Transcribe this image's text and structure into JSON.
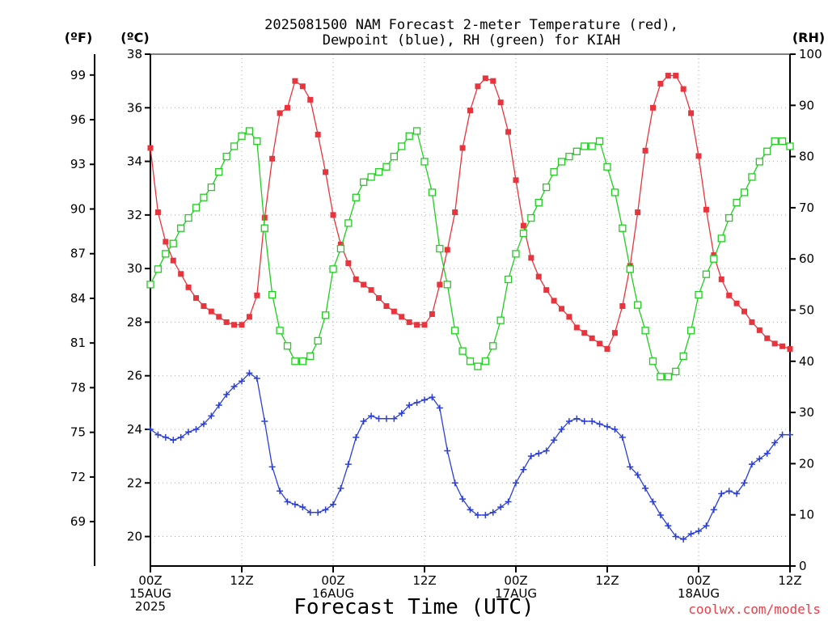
{
  "chart_data": {
    "type": "line",
    "title_lines": [
      "2025081500 NAM Forecast 2-meter Temperature (red),",
      "Dewpoint (blue), RH (green) for KIAH"
    ],
    "xlabel": "Forecast Time (UTC)",
    "credit": "coolwx.com/models",
    "credit_color": "#e8404a",
    "units": {
      "fahrenheit": "(ºF)",
      "celsius": "(ºC)",
      "rh": "(RH)"
    },
    "x_range_hours": [
      0,
      84
    ],
    "x_ticks": [
      {
        "hour": 0,
        "lines": [
          "00Z",
          "15AUG",
          "2025"
        ]
      },
      {
        "hour": 12,
        "lines": [
          "12Z"
        ]
      },
      {
        "hour": 24,
        "lines": [
          "00Z",
          "16AUG"
        ]
      },
      {
        "hour": 36,
        "lines": [
          "12Z"
        ]
      },
      {
        "hour": 48,
        "lines": [
          "00Z",
          "17AUG"
        ]
      },
      {
        "hour": 60,
        "lines": [
          "12Z"
        ]
      },
      {
        "hour": 72,
        "lines": [
          "00Z",
          "18AUG"
        ]
      },
      {
        "hour": 84,
        "lines": [
          "12Z"
        ]
      }
    ],
    "celsius_range": [
      18.9,
      38.0
    ],
    "celsius_ticks": [
      20,
      22,
      24,
      26,
      28,
      30,
      32,
      34,
      36,
      38
    ],
    "fahrenheit_ticks": [
      69,
      72,
      75,
      78,
      81,
      84,
      87,
      90,
      93,
      96,
      99
    ],
    "rh_range": [
      0,
      100
    ],
    "rh_ticks": [
      0,
      10,
      20,
      30,
      40,
      50,
      60,
      70,
      80,
      90,
      100
    ],
    "grid": true,
    "series": [
      {
        "name": "Temperature",
        "axis": "celsius",
        "color": "#e8343c",
        "marker": "filled-square",
        "x": [
          0,
          1,
          2,
          3,
          4,
          5,
          6,
          7,
          8,
          9,
          10,
          11,
          12,
          13,
          14,
          15,
          16,
          17,
          18,
          19,
          20,
          21,
          22,
          23,
          24,
          25,
          26,
          27,
          28,
          29,
          30,
          31,
          32,
          33,
          34,
          35,
          36,
          37,
          38,
          39,
          40,
          41,
          42,
          43,
          44,
          45,
          46,
          47,
          48,
          49,
          50,
          51,
          52,
          53,
          54,
          55,
          56,
          57,
          58,
          59,
          60,
          61,
          62,
          63,
          64,
          65,
          66,
          67,
          68,
          69,
          70,
          71,
          72,
          73,
          74,
          75,
          76,
          77,
          78,
          79,
          80,
          81,
          82,
          83,
          84
        ],
        "values": [
          34.5,
          32.1,
          31.0,
          30.3,
          29.8,
          29.3,
          28.9,
          28.6,
          28.4,
          28.2,
          28.0,
          27.9,
          27.9,
          28.2,
          29.0,
          31.9,
          34.1,
          35.8,
          36.0,
          37.0,
          36.8,
          36.3,
          35.0,
          33.6,
          32.0,
          30.9,
          30.2,
          29.6,
          29.4,
          29.2,
          28.9,
          28.6,
          28.4,
          28.2,
          28.0,
          27.9,
          27.9,
          28.3,
          29.4,
          30.7,
          32.1,
          34.5,
          35.9,
          36.8,
          37.1,
          37.0,
          36.2,
          35.1,
          33.3,
          31.6,
          30.4,
          29.7,
          29.2,
          28.8,
          28.5,
          28.2,
          27.8,
          27.6,
          27.4,
          27.2,
          27.0,
          27.6,
          28.6,
          30.1,
          32.1,
          34.4,
          36.0,
          36.9,
          37.2,
          37.2,
          36.7,
          35.8,
          34.2,
          32.2,
          30.5,
          29.6,
          29.0,
          28.7,
          28.4,
          28.0,
          27.7,
          27.4,
          27.2,
          27.1,
          27.0
        ]
      },
      {
        "name": "Dewpoint",
        "axis": "celsius",
        "color": "#2b3fd6",
        "marker": "plus",
        "x": [
          0,
          1,
          2,
          3,
          4,
          5,
          6,
          7,
          8,
          9,
          10,
          11,
          12,
          13,
          14,
          15,
          16,
          17,
          18,
          19,
          20,
          21,
          22,
          23,
          24,
          25,
          26,
          27,
          28,
          29,
          30,
          31,
          32,
          33,
          34,
          35,
          36,
          37,
          38,
          39,
          40,
          41,
          42,
          43,
          44,
          45,
          46,
          47,
          48,
          49,
          50,
          51,
          52,
          53,
          54,
          55,
          56,
          57,
          58,
          59,
          60,
          61,
          62,
          63,
          64,
          65,
          66,
          67,
          68,
          69,
          70,
          71,
          72,
          73,
          74,
          75,
          76,
          77,
          78,
          79,
          80,
          81,
          82,
          83,
          84
        ],
        "values": [
          24.0,
          23.8,
          23.7,
          23.6,
          23.7,
          23.9,
          24.0,
          24.2,
          24.5,
          24.9,
          25.3,
          25.6,
          25.8,
          26.1,
          25.9,
          24.3,
          22.6,
          21.7,
          21.3,
          21.2,
          21.1,
          20.9,
          20.9,
          21.0,
          21.2,
          21.8,
          22.7,
          23.7,
          24.3,
          24.5,
          24.4,
          24.4,
          24.4,
          24.6,
          24.9,
          25.0,
          25.1,
          25.2,
          24.8,
          23.2,
          22.0,
          21.4,
          21.0,
          20.8,
          20.8,
          20.9,
          21.1,
          21.3,
          22.0,
          22.5,
          23.0,
          23.1,
          23.2,
          23.6,
          24.0,
          24.3,
          24.4,
          24.3,
          24.3,
          24.2,
          24.1,
          24.0,
          23.7,
          22.6,
          22.3,
          21.8,
          21.3,
          20.8,
          20.4,
          20.0,
          19.9,
          20.1,
          20.2,
          20.4,
          21.0,
          21.6,
          21.7,
          21.6,
          22.0,
          22.7,
          22.9,
          23.1,
          23.5,
          23.8,
          23.8
        ]
      },
      {
        "name": "RH",
        "axis": "rh",
        "color": "#1fce1f",
        "marker": "open-square",
        "x": [
          0,
          1,
          2,
          3,
          4,
          5,
          6,
          7,
          8,
          9,
          10,
          11,
          12,
          13,
          14,
          15,
          16,
          17,
          18,
          19,
          20,
          21,
          22,
          23,
          24,
          25,
          26,
          27,
          28,
          29,
          30,
          31,
          32,
          33,
          34,
          35,
          36,
          37,
          38,
          39,
          40,
          41,
          42,
          43,
          44,
          45,
          46,
          47,
          48,
          49,
          50,
          51,
          52,
          53,
          54,
          55,
          56,
          57,
          58,
          59,
          60,
          61,
          62,
          63,
          64,
          65,
          66,
          67,
          68,
          69,
          70,
          71,
          72,
          73,
          74,
          75,
          76,
          77,
          78,
          79,
          80,
          81,
          82,
          83,
          84
        ],
        "values": [
          55,
          58,
          61,
          63,
          66,
          68,
          70,
          72,
          74,
          77,
          80,
          82,
          84,
          85,
          83,
          66,
          53,
          46,
          43,
          40,
          40,
          41,
          44,
          49,
          58,
          62,
          67,
          72,
          75,
          76,
          77,
          78,
          80,
          82,
          84,
          85,
          79,
          73,
          62,
          55,
          46,
          42,
          40,
          39,
          40,
          43,
          48,
          56,
          61,
          65,
          68,
          71,
          74,
          77,
          79,
          80,
          81,
          82,
          82,
          83,
          78,
          73,
          66,
          58,
          51,
          46,
          40,
          37,
          37,
          38,
          41,
          46,
          53,
          57,
          60,
          64,
          68,
          71,
          73,
          76,
          79,
          81,
          83,
          83,
          82
        ]
      }
    ]
  }
}
